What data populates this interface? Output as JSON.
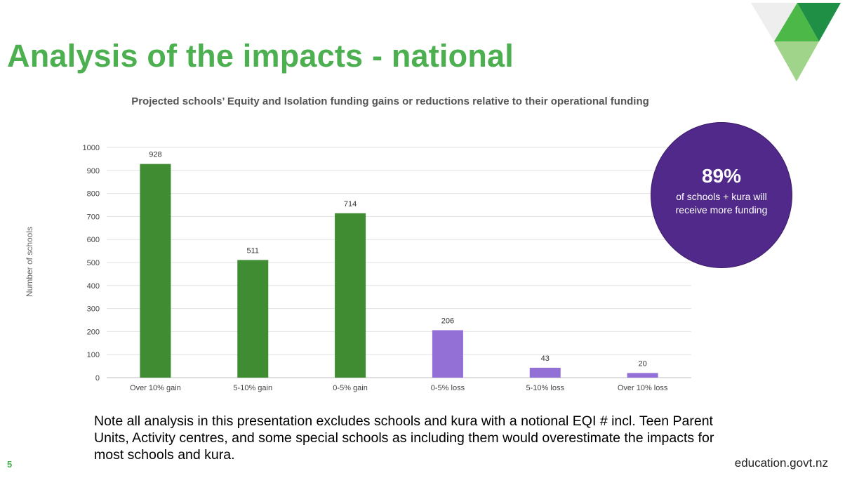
{
  "slide": {
    "title": "Analysis of the impacts - national",
    "note": "Note all analysis in this presentation excludes schools and kura with a notional EQI # incl. Teen Parent Units, Activity centres, and some special schools as including them would overestimate the impacts for most schools and kura.",
    "page_number": "5",
    "website": "education.govt.nz"
  },
  "callout": {
    "percentage": "89%",
    "text": "of schools + kura will receive more funding",
    "color": "#51298a"
  },
  "colors": {
    "title": "#4caf50",
    "gain_bars": "#3f8c33",
    "loss_bars": "#9370d6",
    "logo_dark": "#1e8f45",
    "logo_mid": "#4cb848",
    "logo_light": "#9fd48a",
    "logo_grey": "#eeeeee"
  },
  "chart_data": {
    "type": "bar",
    "title": "Projected schools’ Equity and Isolation funding gains or reductions relative to their operational funding",
    "xlabel": "",
    "ylabel": "Number of schools",
    "categories": [
      "Over 10% gain",
      "5-10% gain",
      "0-5% gain",
      "0-5% loss",
      "5-10% loss",
      "Over 10% loss"
    ],
    "values": [
      928,
      511,
      714,
      206,
      43,
      20
    ],
    "data_labels": [
      "928",
      "511",
      "714",
      "206",
      "43",
      "20"
    ],
    "bar_groups": [
      "gain",
      "gain",
      "gain",
      "loss",
      "loss",
      "loss"
    ],
    "ylim": [
      0,
      1000
    ],
    "yticks": [
      0,
      100,
      200,
      300,
      400,
      500,
      600,
      700,
      800,
      900,
      1000
    ],
    "ytick_labels": [
      "0",
      "100",
      "200",
      "300",
      "400",
      "500",
      "600",
      "700",
      "800",
      "900",
      "1000"
    ],
    "grid": true,
    "legend": "none"
  }
}
